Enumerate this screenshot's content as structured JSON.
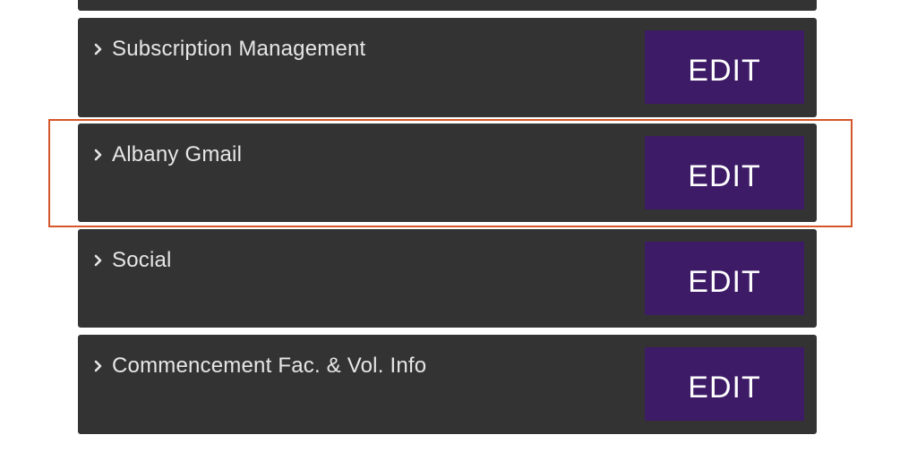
{
  "sections": [
    {
      "label": "Subscription Management",
      "button": "EDIT"
    },
    {
      "label": "Albany Gmail",
      "button": "EDIT"
    },
    {
      "label": "Social",
      "button": "EDIT"
    },
    {
      "label": "Commencement Fac. & Vol. Info",
      "button": "EDIT"
    }
  ],
  "icons": {
    "expand": "chevron-right-icon"
  },
  "colors": {
    "panel": "#333333",
    "button": "#3d1b66",
    "highlight": "#d4562a"
  }
}
